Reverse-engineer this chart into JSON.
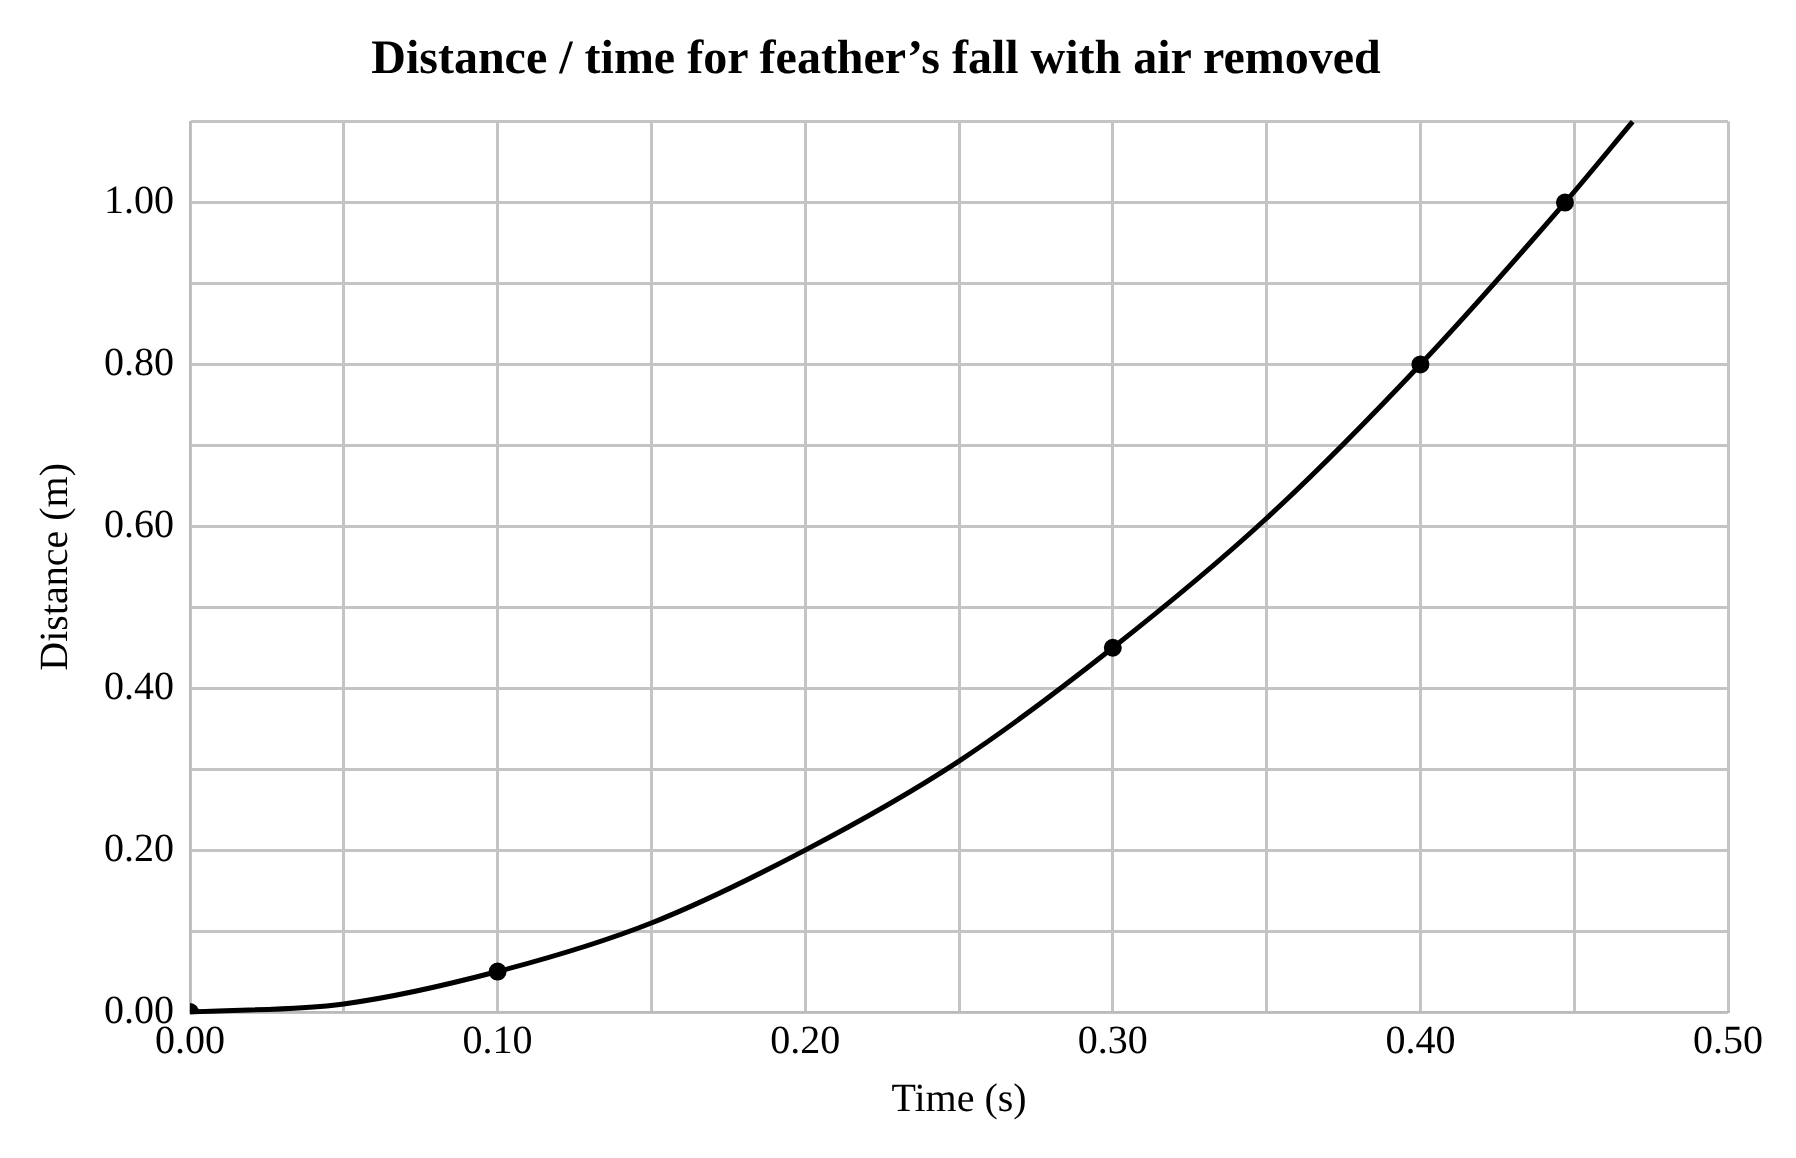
{
  "chart_data": {
    "type": "scatter",
    "title": "Distance / time for feather’s fall with air removed",
    "xlabel": "Time (s)",
    "ylabel": "Distance (m)",
    "series": [
      {
        "type": "line",
        "color": "#000000",
        "marker": "none",
        "x": [
          0,
          0.05,
          0.1,
          0.15,
          0.2,
          0.25,
          0.3,
          0.35,
          0.4,
          0.447,
          0.469
        ],
        "values": [
          0,
          0.01,
          0.05,
          0.11,
          0.2,
          0.31,
          0.45,
          0.61,
          0.8,
          1.0,
          1.1
        ]
      },
      {
        "type": "scatter",
        "color": "#000000",
        "marker": "circle",
        "x": [
          0,
          0.1,
          0.3,
          0.4,
          0.447
        ],
        "values": [
          0,
          0.05,
          0.45,
          0.8,
          1.0
        ]
      }
    ],
    "xlim": [
      0,
      0.5
    ],
    "xticks": [
      {
        "value": 0,
        "label": "0.00"
      },
      {
        "value": 0.05,
        "label": null
      },
      {
        "value": 0.1,
        "label": "0.10"
      },
      {
        "value": 0.15,
        "label": null
      },
      {
        "value": 0.2,
        "label": "0.20"
      },
      {
        "value": 0.25,
        "label": null
      },
      {
        "value": 0.3,
        "label": "0.30"
      },
      {
        "value": 0.35,
        "label": null
      },
      {
        "value": 0.4,
        "label": "0.40"
      },
      {
        "value": 0.45,
        "label": null
      },
      {
        "value": 0.5,
        "label": "0.50"
      }
    ],
    "ylim": [
      0,
      1.1
    ],
    "yticks": [
      {
        "value": 0,
        "label": "0.00"
      },
      {
        "value": 0.1,
        "label": null
      },
      {
        "value": 0.2,
        "label": "0.20"
      },
      {
        "value": 0.3,
        "label": null
      },
      {
        "value": 0.4,
        "label": "0.40"
      },
      {
        "value": 0.5,
        "label": null
      },
      {
        "value": 0.6,
        "label": "0.60"
      },
      {
        "value": 0.7,
        "label": null
      },
      {
        "value": 0.8,
        "label": "0.80"
      },
      {
        "value": 0.9,
        "label": null
      },
      {
        "value": 1.0,
        "label": "1.00"
      },
      {
        "value": 1.1,
        "label": null
      }
    ],
    "grid": true,
    "legend": false
  }
}
